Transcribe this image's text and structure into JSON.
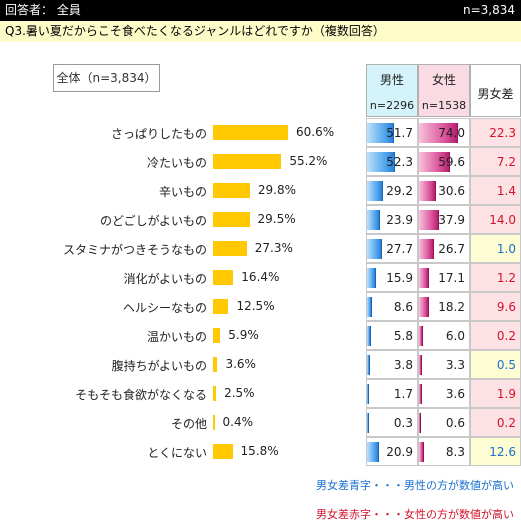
{
  "header": {
    "respondent_label": "回答者： 全員",
    "n_label": "n=3,834"
  },
  "question": "Q3.暑い夏だからこそ食べたくなるジャンルはどれですか（複数回答）",
  "total_box": "全体（n=3,834）",
  "columns": {
    "male": {
      "title": "男性",
      "n": "n=2296"
    },
    "female": {
      "title": "女性",
      "n": "n=1538"
    },
    "diff": {
      "title": "男女差"
    }
  },
  "legend": {
    "blue": "男女差青字・・・男性の方が数値が高い",
    "red": "男女差赤字・・・女性の方が数値が高い"
  },
  "colors": {
    "overall_bar": "#ffc800",
    "male_header": "#d4f3fb",
    "female_header": "#fadbe3",
    "blue_text": "#1a6fd0",
    "red_text": "#d4122a",
    "diff_red_bg": "#fce2e4",
    "diff_blue_bg": "#fdfcd2"
  },
  "chart_data": {
    "type": "bar",
    "categories": [
      "さっぱりしたもの",
      "冷たいもの",
      "辛いもの",
      "のどごしがよいもの",
      "スタミナがつきそうなもの",
      "消化がよいもの",
      "ヘルシーなもの",
      "温かいもの",
      "腹持ちがよいもの",
      "そもそも食欲がなくなる",
      "その他",
      "とくにない"
    ],
    "overall": [
      60.6,
      55.2,
      29.8,
      29.5,
      27.3,
      16.4,
      12.5,
      5.9,
      3.6,
      2.5,
      0.4,
      15.8
    ],
    "overall_labels": [
      "60.6%",
      "55.2%",
      "29.8%",
      "29.5%",
      "27.3%",
      "16.4%",
      "12.5%",
      "5.9%",
      "3.6%",
      "2.5%",
      "0.4%",
      "15.8%"
    ],
    "male": [
      51.7,
      52.3,
      29.2,
      23.9,
      27.7,
      15.9,
      8.6,
      5.8,
      3.8,
      1.7,
      0.3,
      20.9
    ],
    "male_labels": [
      "51.7",
      "52.3",
      "29.2",
      "23.9",
      "27.7",
      "15.9",
      "8.6",
      "5.8",
      "3.8",
      "1.7",
      "0.3",
      "20.9"
    ],
    "female": [
      74.0,
      59.6,
      30.6,
      37.9,
      26.7,
      17.1,
      18.2,
      6.0,
      3.3,
      3.6,
      0.6,
      8.3
    ],
    "female_labels": [
      "74.0",
      "59.6",
      "30.6",
      "37.9",
      "26.7",
      "17.1",
      "18.2",
      "6.0",
      "3.3",
      "3.6",
      "0.6",
      "8.3"
    ],
    "diff": [
      22.3,
      7.2,
      1.4,
      14.0,
      1.0,
      1.2,
      9.6,
      0.2,
      0.5,
      1.9,
      0.2,
      12.6
    ],
    "diff_labels": [
      "22.3",
      "7.2",
      "1.4",
      "14.0",
      "1.0",
      "1.2",
      "9.6",
      "0.2",
      "0.5",
      "1.9",
      "0.2",
      "12.6"
    ],
    "diff_higher": [
      "female",
      "female",
      "female",
      "female",
      "male",
      "female",
      "female",
      "female",
      "male",
      "female",
      "female",
      "male"
    ],
    "xlim": [
      0,
      100
    ]
  }
}
